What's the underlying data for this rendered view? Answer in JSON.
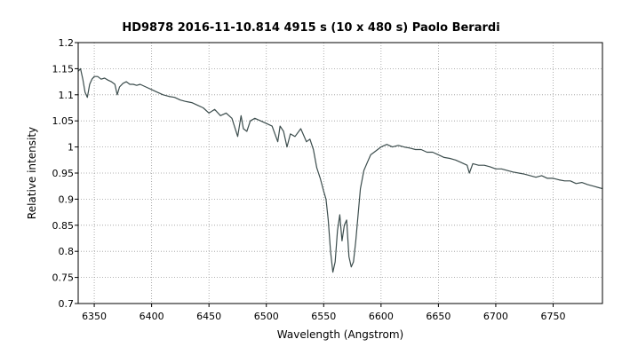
{
  "chart_data": {
    "type": "line",
    "title": "HD9878    2016-11-10.814   4915 s (10 x 480 s)   Paolo Berardi",
    "xlabel": "Wavelength (Angstrom)",
    "ylabel": "Relative intensity",
    "xlim": [
      6336,
      6793
    ],
    "ylim": [
      0.7,
      1.2
    ],
    "x_ticks": [
      6350,
      6400,
      6450,
      6500,
      6550,
      6600,
      6650,
      6700,
      6750
    ],
    "y_ticks": [
      0.7,
      0.75,
      0.8,
      0.85,
      0.9,
      0.95,
      1,
      1.05,
      1.1,
      1.15,
      1.2
    ],
    "grid": true,
    "line_color": "#3c4d4d",
    "series": [
      {
        "x": [
          6336,
          6338,
          6340,
          6342,
          6344,
          6346,
          6348,
          6350,
          6353,
          6356,
          6359,
          6362,
          6365,
          6368,
          6370,
          6372,
          6375,
          6378,
          6381,
          6384,
          6387,
          6390,
          6395,
          6400,
          6405,
          6410,
          6415,
          6420,
          6425,
          6430,
          6435,
          6440,
          6445,
          6450,
          6455,
          6460,
          6465,
          6470,
          6475,
          6478,
          6480,
          6483,
          6486,
          6490,
          6495,
          6500,
          6505,
          6510,
          6512,
          6515,
          6518,
          6521,
          6525,
          6530,
          6535,
          6538,
          6541,
          6544,
          6547,
          6550,
          6552,
          6554,
          6556,
          6558,
          6560,
          6562,
          6564,
          6566,
          6568,
          6570,
          6572,
          6574,
          6576,
          6578,
          6580,
          6582,
          6585,
          6588,
          6591,
          6594,
          6597,
          6600,
          6605,
          6610,
          6615,
          6620,
          6625,
          6630,
          6635,
          6640,
          6645,
          6650,
          6655,
          6660,
          6665,
          6670,
          6675,
          6677,
          6680,
          6685,
          6690,
          6695,
          6700,
          6705,
          6710,
          6715,
          6720,
          6725,
          6730,
          6735,
          6740,
          6745,
          6750,
          6755,
          6760,
          6765,
          6770,
          6775,
          6780,
          6785,
          6790,
          6793
        ],
        "y": [
          1.145,
          1.15,
          1.13,
          1.105,
          1.095,
          1.12,
          1.13,
          1.135,
          1.135,
          1.13,
          1.132,
          1.128,
          1.125,
          1.12,
          1.1,
          1.115,
          1.122,
          1.125,
          1.12,
          1.12,
          1.118,
          1.12,
          1.115,
          1.11,
          1.105,
          1.1,
          1.097,
          1.095,
          1.09,
          1.087,
          1.085,
          1.08,
          1.075,
          1.065,
          1.072,
          1.06,
          1.065,
          1.055,
          1.02,
          1.06,
          1.035,
          1.03,
          1.05,
          1.055,
          1.05,
          1.045,
          1.04,
          1.01,
          1.04,
          1.03,
          1.0,
          1.025,
          1.02,
          1.035,
          1.01,
          1.015,
          0.995,
          0.96,
          0.94,
          0.915,
          0.9,
          0.86,
          0.8,
          0.76,
          0.78,
          0.84,
          0.87,
          0.82,
          0.85,
          0.86,
          0.79,
          0.77,
          0.78,
          0.82,
          0.87,
          0.92,
          0.955,
          0.97,
          0.985,
          0.99,
          0.995,
          1.0,
          1.005,
          1.0,
          1.003,
          1.0,
          0.998,
          0.995,
          0.995,
          0.99,
          0.99,
          0.985,
          0.98,
          0.978,
          0.975,
          0.97,
          0.965,
          0.95,
          0.968,
          0.965,
          0.965,
          0.962,
          0.958,
          0.958,
          0.955,
          0.952,
          0.95,
          0.948,
          0.945,
          0.942,
          0.945,
          0.94,
          0.94,
          0.937,
          0.935,
          0.935,
          0.93,
          0.932,
          0.928,
          0.925,
          0.922,
          0.92
        ]
      }
    ]
  }
}
